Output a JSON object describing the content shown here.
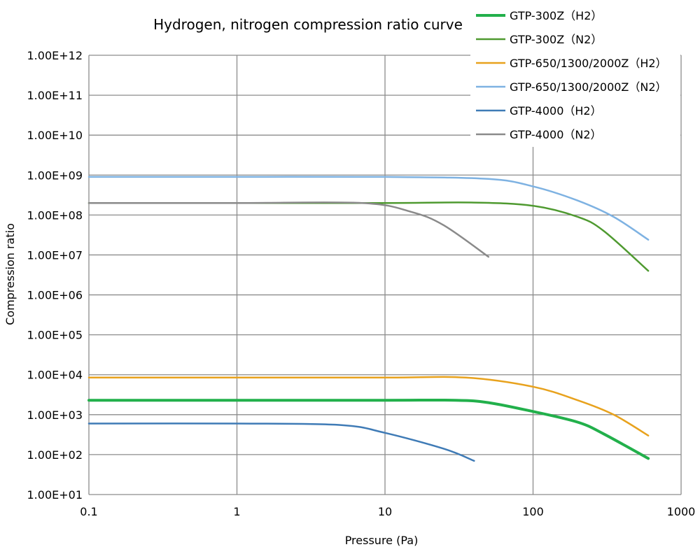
{
  "chart_data": {
    "type": "line",
    "title": "Hydrogen, nitrogen compression ratio curve",
    "xlabel": "Pressure (Pa)",
    "ylabel": "Compression ratio",
    "x_scale": "log",
    "y_scale": "log",
    "xlim": [
      0.1,
      1000
    ],
    "ylim": [
      10,
      1000000000000
    ],
    "x_ticks": [
      "0.1",
      "1",
      "10",
      "100",
      "1000"
    ],
    "y_ticks": [
      "1.00E+01",
      "1.00E+02",
      "1.00E+03",
      "1.00E+04",
      "1.00E+05",
      "1.00E+06",
      "1.00E+07",
      "1.00E+08",
      "1.00E+09",
      "1.00E+10",
      "1.00E+11",
      "1.00E+12"
    ],
    "grid": true,
    "legend_position": "top-right",
    "series": [
      {
        "name": "GTP-300Z（H2）",
        "color": "#22b04b",
        "points": [
          [
            0.1,
            2300
          ],
          [
            1,
            2300
          ],
          [
            10,
            2300
          ],
          [
            30,
            2300
          ],
          [
            50,
            2000
          ],
          [
            100,
            1200
          ],
          [
            200,
            650
          ],
          [
            300,
            330
          ],
          [
            600,
            80
          ]
        ]
      },
      {
        "name": "GTP-300Z（N2）",
        "color": "#4f9a30",
        "points": [
          [
            0.1,
            200000000
          ],
          [
            1,
            200000000
          ],
          [
            10,
            200000000
          ],
          [
            40,
            205000000
          ],
          [
            100,
            170000000
          ],
          [
            200,
            90000000
          ],
          [
            300,
            40000000
          ],
          [
            600,
            4000000
          ]
        ]
      },
      {
        "name": "GTP-650/1300/2000Z（H2）",
        "color": "#e8a21d",
        "points": [
          [
            0.1,
            8500
          ],
          [
            1,
            8500
          ],
          [
            10,
            8500
          ],
          [
            35,
            8500
          ],
          [
            100,
            5000
          ],
          [
            200,
            2300
          ],
          [
            350,
            1000
          ],
          [
            600,
            300
          ]
        ]
      },
      {
        "name": "GTP-650/1300/2000Z（N2）",
        "color": "#7eb2e2",
        "points": [
          [
            0.1,
            900000000
          ],
          [
            1,
            900000000
          ],
          [
            10,
            900000000
          ],
          [
            50,
            800000000
          ],
          [
            100,
            520000000
          ],
          [
            200,
            230000000
          ],
          [
            350,
            90000000
          ],
          [
            600,
            24000000
          ]
        ]
      },
      {
        "name": "GTP-4000（H2）",
        "color": "#3f7bb6",
        "points": [
          [
            0.1,
            600
          ],
          [
            1,
            600
          ],
          [
            5,
            550
          ],
          [
            10,
            350
          ],
          [
            25,
            140
          ],
          [
            40,
            70
          ]
        ]
      },
      {
        "name": "GTP-4000（N2）",
        "color": "#8a8a8a",
        "points": [
          [
            0.1,
            200000000
          ],
          [
            1,
            200000000
          ],
          [
            7,
            200000000
          ],
          [
            15,
            120000000
          ],
          [
            25,
            55000000
          ],
          [
            50,
            9000000
          ]
        ]
      }
    ]
  }
}
